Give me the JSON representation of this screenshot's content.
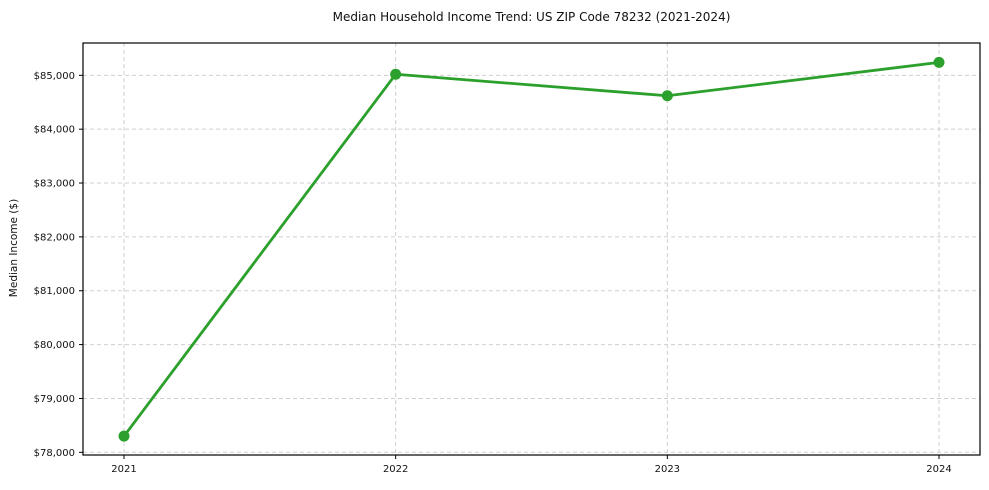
{
  "chart_data": {
    "type": "line",
    "title": "Median Household Income Trend: US ZIP Code 78232 (2021-2024)",
    "xlabel": "",
    "ylabel": "Median Income ($)",
    "categories": [
      "2021",
      "2022",
      "2023",
      "2024"
    ],
    "series": [
      {
        "name": "median-household-income",
        "values": [
          78300,
          85020,
          84620,
          85240
        ],
        "color": "#2ca02c",
        "marker": "circle"
      }
    ],
    "ylim": [
      77950,
      85600
    ],
    "y_ticks": [
      {
        "value": 78000,
        "label": "$78,000"
      },
      {
        "value": 79000,
        "label": "$79,000"
      },
      {
        "value": 80000,
        "label": "$80,000"
      },
      {
        "value": 81000,
        "label": "$81,000"
      },
      {
        "value": 82000,
        "label": "$82,000"
      },
      {
        "value": 83000,
        "label": "$83,000"
      },
      {
        "value": 84000,
        "label": "$84,000"
      },
      {
        "value": 85000,
        "label": "$85,000"
      }
    ],
    "grid": "both-dashed",
    "legend": "none",
    "background": "#ffffff",
    "text_color": "#111111",
    "gridline_color": "#cfcfcf"
  }
}
